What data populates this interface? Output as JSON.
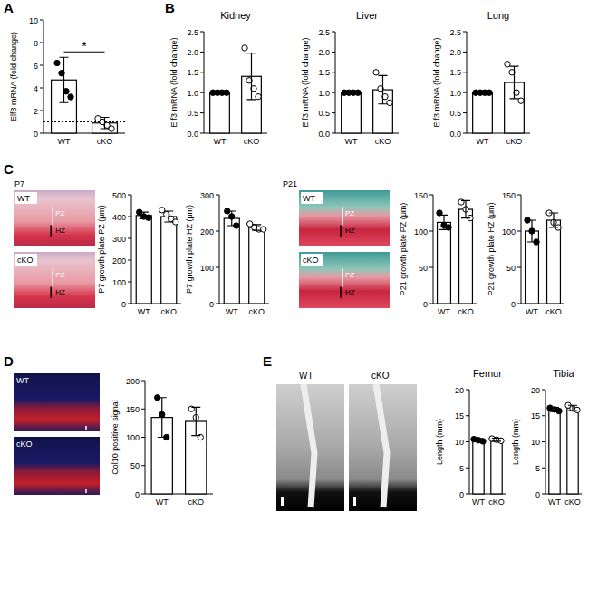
{
  "chart_data": [
    {
      "type": "bar",
      "ylabel": "Elf3 mRNA (fold change)",
      "categories": [
        "WT",
        "cKO"
      ],
      "values": [
        4.7,
        0.9
      ],
      "errors": [
        2.0,
        0.5
      ],
      "points": [
        [
          6.2,
          5.3,
          3.7,
          3.2
        ],
        [
          1.3,
          1.0,
          0.7,
          0.4
        ]
      ],
      "ylim": [
        0,
        10
      ],
      "yticks": [
        0,
        2,
        4,
        6,
        8,
        10
      ],
      "ref_line": 1,
      "annotation": "*"
    },
    {
      "type": "bar",
      "title": "Kidney",
      "ylabel": "Elf3 mRNA (fold change)",
      "categories": [
        "WT",
        "cKO"
      ],
      "values": [
        1.0,
        1.4
      ],
      "errors": [
        0,
        0.57
      ],
      "points": [
        [
          1.0,
          1.0,
          1.0,
          1.0
        ],
        [
          2.1,
          1.3,
          1.1,
          0.9
        ]
      ],
      "ylim": [
        0,
        2.5
      ],
      "yticks": [
        {
          "value": 0,
          "label": "0.0"
        },
        0.5,
        {
          "value": 1,
          "label": "1.0"
        },
        1.5,
        {
          "value": 2,
          "label": "2.0"
        },
        2.5
      ]
    },
    {
      "type": "bar",
      "title": "Liver",
      "ylabel": "Elf3 mRNA (fold change)",
      "categories": [
        "WT",
        "cKO"
      ],
      "values": [
        1.0,
        1.07
      ],
      "errors": [
        0,
        0.35
      ],
      "points": [
        [
          1.0,
          1.0,
          1.0,
          1.0
        ],
        [
          1.5,
          1.1,
          0.9,
          0.75
        ]
      ],
      "ylim": [
        0,
        2.5
      ],
      "yticks": [
        {
          "value": 0,
          "label": "0.0"
        },
        0.5,
        {
          "value": 1,
          "label": "1.0"
        },
        1.5,
        {
          "value": 2,
          "label": "2.0"
        },
        2.5
      ]
    },
    {
      "type": "bar",
      "title": "Lung",
      "ylabel": "Elf3 mRNA (fold change)",
      "categories": [
        "WT",
        "cKO"
      ],
      "values": [
        1.0,
        1.25
      ],
      "errors": [
        0,
        0.4
      ],
      "points": [
        [
          1.0,
          1.0,
          1.0,
          1.0
        ],
        [
          1.7,
          1.5,
          1.0,
          0.8
        ]
      ],
      "ylim": [
        0,
        2.5
      ],
      "yticks": [
        {
          "value": 0,
          "label": "0.0"
        },
        0.5,
        {
          "value": 1,
          "label": "1.0"
        },
        1.5,
        {
          "value": 2,
          "label": "2.0"
        },
        2.5
      ]
    },
    {
      "type": "bar",
      "ylabel": "P7 growth plate PZ (μm)",
      "categories": [
        "WT",
        "cKO"
      ],
      "values": [
        405,
        400
      ],
      "errors": [
        15,
        25
      ],
      "points": [
        [
          420,
          400,
          395
        ],
        [
          430,
          410,
          390,
          375
        ]
      ],
      "ylim": [
        0,
        500
      ],
      "yticks": [
        0,
        100,
        200,
        300,
        400,
        500
      ]
    },
    {
      "type": "bar",
      "ylabel": "P7 growth plate HZ (μm)",
      "categories": [
        "WT",
        "cKO"
      ],
      "values": [
        235,
        210
      ],
      "errors": [
        20,
        8
      ],
      "points": [
        [
          255,
          240,
          215
        ],
        [
          220,
          210,
          205,
          205
        ]
      ],
      "ylim": [
        0,
        300
      ],
      "yticks": [
        0,
        100,
        200,
        300
      ]
    },
    {
      "type": "bar",
      "ylabel": "P21 growth plate PZ (μm)",
      "categories": [
        "WT",
        "cKO"
      ],
      "values": [
        112,
        130
      ],
      "errors": [
        10,
        12
      ],
      "points": [
        [
          125,
          108,
          105
        ],
        [
          140,
          130,
          118
        ]
      ],
      "ylim": [
        0,
        150
      ],
      "yticks": [
        0,
        50,
        100,
        150
      ]
    },
    {
      "type": "bar",
      "ylabel": "P21 growth plate HZ (μm)",
      "categories": [
        "WT",
        "cKO"
      ],
      "values": [
        100,
        115
      ],
      "errors": [
        15,
        10
      ],
      "points": [
        [
          115,
          100,
          85
        ],
        [
          125,
          112,
          105
        ]
      ],
      "ylim": [
        0,
        150
      ],
      "yticks": [
        0,
        50,
        100,
        150
      ]
    },
    {
      "type": "bar",
      "ylabel": "Col10 positive signal",
      "categories": [
        "WT",
        "cKO"
      ],
      "values": [
        135,
        128
      ],
      "errors": [
        35,
        25
      ],
      "points": [
        [
          170,
          140,
          100
        ],
        [
          150,
          135,
          100
        ]
      ],
      "ylim": [
        0,
        200
      ],
      "yticks": [
        0,
        50,
        100,
        150,
        200
      ]
    },
    {
      "type": "bar",
      "title": "Femur",
      "ylabel": "Length (mm)",
      "categories": [
        "WT",
        "cKO"
      ],
      "values": [
        10.3,
        10.4
      ],
      "errors": [
        0.3,
        0.3
      ],
      "points": [
        [
          10.5,
          10.3,
          10.1
        ],
        [
          10.6,
          10.4,
          10.2
        ]
      ],
      "ylim": [
        0,
        20
      ],
      "yticks": [
        0,
        5,
        10,
        15,
        20
      ]
    },
    {
      "type": "bar",
      "title": "Tibia",
      "ylabel": "Length (mm)",
      "categories": [
        "WT",
        "cKO"
      ],
      "values": [
        16.2,
        16.5
      ],
      "errors": [
        0.4,
        0.5
      ],
      "points": [
        [
          16.5,
          16.2,
          15.9
        ],
        [
          17.0,
          16.4,
          16.1
        ]
      ],
      "ylim": [
        0,
        20
      ],
      "yticks": [
        0,
        5,
        10,
        15,
        20
      ]
    }
  ],
  "figure": {
    "panels": [
      "A",
      "B",
      "C",
      "D",
      "E"
    ],
    "image_labels": {
      "p7": "P7",
      "p21": "P21",
      "wt": "WT",
      "cko": "cKO",
      "pz": "PZ",
      "hz": "HZ"
    }
  }
}
